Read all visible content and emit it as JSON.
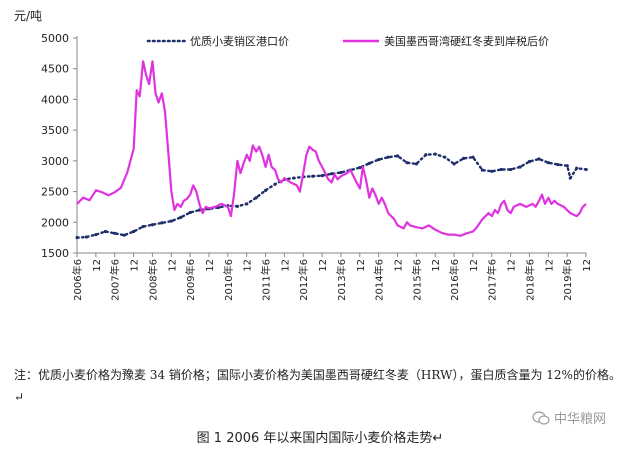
{
  "unit_label": "元/吨",
  "note": "注：优质小麦价格为豫麦 34 销价格；国际小麦价格为美国墨西哥硬红冬麦（HRW），蛋白质含量为 12%的价格。↵",
  "caption": "图 1 2006 年以来国内国际小麦价格走势↵",
  "watermark": "中华粮网",
  "watermark_icon": "wechat-icon",
  "colors": {
    "domestic": "#1f2f6b",
    "import": "#e033e0",
    "axis": "#888888"
  },
  "chart_data": {
    "type": "line",
    "title": "",
    "xlabel": "",
    "ylabel": "元/吨",
    "ylim": [
      1500,
      5000
    ],
    "yticks": [
      1500,
      2000,
      2500,
      3000,
      3500,
      4000,
      4500,
      5000
    ],
    "xlim": [
      2006.417,
      2019.917
    ],
    "x_tick_labels": [
      "2006年6",
      "12",
      "2007年6",
      "12",
      "2008年6",
      "12",
      "2009年6",
      "12",
      "2010年6",
      "12",
      "2011年6",
      "12",
      "2012年6",
      "12",
      "2013年6",
      "12",
      "2014年6",
      "12",
      "2015年6",
      "12",
      "2016年6",
      "12",
      "2017年6",
      "12",
      "2018年6",
      "12",
      "2019年6",
      "12"
    ],
    "legend_position": "top",
    "grid": false,
    "series": [
      {
        "name": "优质小麦销区港口价",
        "style": "dotted",
        "points": [
          [
            2006.42,
            1750
          ],
          [
            2006.67,
            1760
          ],
          [
            2006.92,
            1800
          ],
          [
            2007.17,
            1850
          ],
          [
            2007.42,
            1820
          ],
          [
            2007.67,
            1790
          ],
          [
            2007.92,
            1850
          ],
          [
            2008.17,
            1930
          ],
          [
            2008.42,
            1960
          ],
          [
            2008.67,
            1990
          ],
          [
            2008.92,
            2020
          ],
          [
            2009.17,
            2080
          ],
          [
            2009.42,
            2160
          ],
          [
            2009.67,
            2200
          ],
          [
            2009.92,
            2220
          ],
          [
            2010.17,
            2240
          ],
          [
            2010.42,
            2270
          ],
          [
            2010.67,
            2260
          ],
          [
            2010.92,
            2300
          ],
          [
            2011.17,
            2400
          ],
          [
            2011.42,
            2520
          ],
          [
            2011.67,
            2620
          ],
          [
            2011.92,
            2700
          ],
          [
            2012.17,
            2720
          ],
          [
            2012.42,
            2740
          ],
          [
            2012.67,
            2750
          ],
          [
            2012.92,
            2760
          ],
          [
            2013.17,
            2790
          ],
          [
            2013.42,
            2810
          ],
          [
            2013.67,
            2850
          ],
          [
            2013.92,
            2890
          ],
          [
            2014.17,
            2960
          ],
          [
            2014.42,
            3020
          ],
          [
            2014.67,
            3060
          ],
          [
            2014.92,
            3080
          ],
          [
            2015.17,
            2970
          ],
          [
            2015.42,
            2950
          ],
          [
            2015.67,
            3100
          ],
          [
            2015.92,
            3110
          ],
          [
            2016.17,
            3060
          ],
          [
            2016.42,
            2950
          ],
          [
            2016.67,
            3040
          ],
          [
            2016.92,
            3060
          ],
          [
            2017.17,
            2850
          ],
          [
            2017.42,
            2830
          ],
          [
            2017.67,
            2860
          ],
          [
            2017.92,
            2860
          ],
          [
            2018.17,
            2900
          ],
          [
            2018.42,
            2990
          ],
          [
            2018.67,
            3030
          ],
          [
            2018.92,
            2970
          ],
          [
            2019.17,
            2940
          ],
          [
            2019.42,
            2920
          ],
          [
            2019.5,
            2720
          ],
          [
            2019.67,
            2880
          ],
          [
            2019.92,
            2860
          ]
        ]
      },
      {
        "name": "美国墨西哥湾硬红冬麦到岸税后价",
        "style": "solid",
        "points": [
          [
            2006.42,
            2300
          ],
          [
            2006.58,
            2400
          ],
          [
            2006.75,
            2360
          ],
          [
            2006.92,
            2520
          ],
          [
            2007.08,
            2490
          ],
          [
            2007.25,
            2440
          ],
          [
            2007.42,
            2490
          ],
          [
            2007.58,
            2560
          ],
          [
            2007.75,
            2810
          ],
          [
            2007.92,
            3200
          ],
          [
            2008.0,
            4150
          ],
          [
            2008.08,
            4050
          ],
          [
            2008.17,
            4620
          ],
          [
            2008.25,
            4400
          ],
          [
            2008.33,
            4250
          ],
          [
            2008.42,
            4620
          ],
          [
            2008.5,
            4100
          ],
          [
            2008.58,
            3950
          ],
          [
            2008.67,
            4100
          ],
          [
            2008.75,
            3800
          ],
          [
            2008.83,
            3200
          ],
          [
            2008.92,
            2500
          ],
          [
            2009.0,
            2200
          ],
          [
            2009.08,
            2300
          ],
          [
            2009.17,
            2250
          ],
          [
            2009.25,
            2350
          ],
          [
            2009.33,
            2380
          ],
          [
            2009.42,
            2450
          ],
          [
            2009.5,
            2600
          ],
          [
            2009.58,
            2500
          ],
          [
            2009.67,
            2280
          ],
          [
            2009.75,
            2150
          ],
          [
            2009.83,
            2250
          ],
          [
            2009.92,
            2230
          ],
          [
            2010.08,
            2250
          ],
          [
            2010.25,
            2300
          ],
          [
            2010.42,
            2250
          ],
          [
            2010.5,
            2100
          ],
          [
            2010.58,
            2450
          ],
          [
            2010.67,
            3000
          ],
          [
            2010.75,
            2800
          ],
          [
            2010.83,
            2950
          ],
          [
            2010.92,
            3100
          ],
          [
            2011.0,
            3000
          ],
          [
            2011.08,
            3250
          ],
          [
            2011.17,
            3150
          ],
          [
            2011.25,
            3230
          ],
          [
            2011.33,
            3100
          ],
          [
            2011.42,
            2900
          ],
          [
            2011.5,
            3100
          ],
          [
            2011.58,
            2900
          ],
          [
            2011.67,
            2850
          ],
          [
            2011.75,
            2700
          ],
          [
            2011.83,
            2650
          ],
          [
            2011.92,
            2720
          ],
          [
            2012.08,
            2650
          ],
          [
            2012.25,
            2600
          ],
          [
            2012.33,
            2500
          ],
          [
            2012.42,
            2800
          ],
          [
            2012.5,
            3100
          ],
          [
            2012.58,
            3230
          ],
          [
            2012.67,
            3180
          ],
          [
            2012.75,
            3150
          ],
          [
            2012.83,
            3000
          ],
          [
            2012.92,
            2900
          ],
          [
            2013.0,
            2800
          ],
          [
            2013.08,
            2700
          ],
          [
            2013.17,
            2650
          ],
          [
            2013.25,
            2780
          ],
          [
            2013.33,
            2700
          ],
          [
            2013.42,
            2750
          ],
          [
            2013.58,
            2800
          ],
          [
            2013.67,
            2850
          ],
          [
            2013.75,
            2750
          ],
          [
            2013.83,
            2650
          ],
          [
            2013.92,
            2550
          ],
          [
            2014.0,
            2900
          ],
          [
            2014.08,
            2700
          ],
          [
            2014.17,
            2400
          ],
          [
            2014.25,
            2550
          ],
          [
            2014.33,
            2450
          ],
          [
            2014.42,
            2300
          ],
          [
            2014.5,
            2400
          ],
          [
            2014.58,
            2300
          ],
          [
            2014.67,
            2150
          ],
          [
            2014.83,
            2050
          ],
          [
            2014.92,
            1950
          ],
          [
            2015.08,
            1900
          ],
          [
            2015.17,
            2000
          ],
          [
            2015.25,
            1950
          ],
          [
            2015.42,
            1920
          ],
          [
            2015.58,
            1900
          ],
          [
            2015.75,
            1950
          ],
          [
            2015.92,
            1880
          ],
          [
            2016.08,
            1830
          ],
          [
            2016.25,
            1800
          ],
          [
            2016.42,
            1800
          ],
          [
            2016.58,
            1780
          ],
          [
            2016.75,
            1820
          ],
          [
            2016.92,
            1850
          ],
          [
            2017.0,
            1900
          ],
          [
            2017.17,
            2050
          ],
          [
            2017.33,
            2150
          ],
          [
            2017.42,
            2100
          ],
          [
            2017.5,
            2200
          ],
          [
            2017.58,
            2150
          ],
          [
            2017.67,
            2300
          ],
          [
            2017.75,
            2350
          ],
          [
            2017.83,
            2200
          ],
          [
            2017.92,
            2150
          ],
          [
            2018.0,
            2250
          ],
          [
            2018.17,
            2300
          ],
          [
            2018.33,
            2250
          ],
          [
            2018.5,
            2300
          ],
          [
            2018.58,
            2250
          ],
          [
            2018.67,
            2350
          ],
          [
            2018.75,
            2450
          ],
          [
            2018.83,
            2300
          ],
          [
            2018.92,
            2400
          ],
          [
            2019.0,
            2300
          ],
          [
            2019.08,
            2350
          ],
          [
            2019.17,
            2300
          ],
          [
            2019.33,
            2250
          ],
          [
            2019.5,
            2150
          ],
          [
            2019.67,
            2100
          ],
          [
            2019.75,
            2150
          ],
          [
            2019.83,
            2250
          ],
          [
            2019.92,
            2300
          ]
        ]
      }
    ]
  }
}
